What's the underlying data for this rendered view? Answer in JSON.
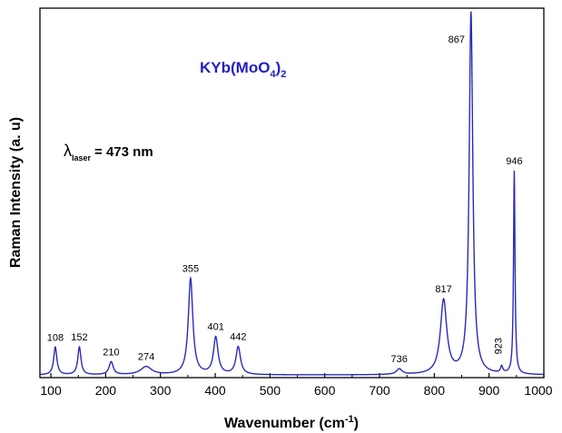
{
  "chart_data": {
    "type": "line",
    "title": "",
    "xlabel": "Wavenumber (cm",
    "xlabel_sup": "-1",
    "xlabel_tail": ")",
    "ylabel": "Raman Intensity (a. u)",
    "xlim": [
      80,
      1000
    ],
    "ylim": [
      0,
      1
    ],
    "x_ticks": [
      100,
      200,
      300,
      400,
      500,
      600,
      700,
      800,
      900,
      1000
    ],
    "grid": false,
    "series_color": "#2a2ab8",
    "annotation_color": "#2020c0",
    "annotations": {
      "compound": "KYb(MoO",
      "compound_sub": "4",
      "compound_close": ")",
      "compound_sub2": "2",
      "lambda_symbol": "λ",
      "lambda_sub": "laser",
      "lambda_value": "= 473 nm"
    },
    "peaks": [
      {
        "x": 108,
        "y": 0.075,
        "w": 3.5,
        "label": "108"
      },
      {
        "x": 152,
        "y": 0.075,
        "w": 3.5,
        "label": "152"
      },
      {
        "x": 210,
        "y": 0.035,
        "w": 4.5,
        "label": "210"
      },
      {
        "x": 274,
        "y": 0.022,
        "w": 12,
        "label": "274"
      },
      {
        "x": 355,
        "y": 0.26,
        "w": 5,
        "label": "355"
      },
      {
        "x": 401,
        "y": 0.1,
        "w": 5,
        "label": "401"
      },
      {
        "x": 442,
        "y": 0.075,
        "w": 5,
        "label": "442"
      },
      {
        "x": 736,
        "y": 0.015,
        "w": 6,
        "label": "736"
      },
      {
        "x": 817,
        "y": 0.2,
        "w": 7,
        "label": "817"
      },
      {
        "x": 867,
        "y": 0.98,
        "w": 4,
        "label": "867"
      },
      {
        "x": 923,
        "y": 0.018,
        "w": 2.5,
        "label": "923"
      },
      {
        "x": 946,
        "y": 0.55,
        "w": 1.6,
        "label": "946"
      }
    ]
  }
}
